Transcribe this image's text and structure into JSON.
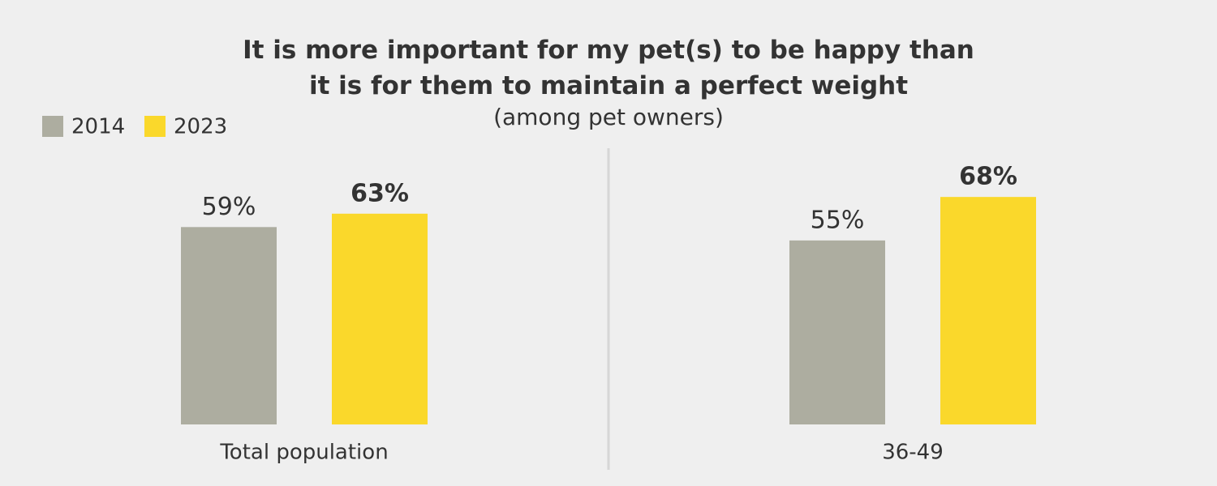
{
  "chart_data": {
    "type": "bar",
    "title": "It is more important for my pet(s) to be happy than it is for them to maintain a perfect weight",
    "subtitle": "(among pet owners)",
    "categories": [
      "Total population",
      "36-49"
    ],
    "series": [
      {
        "name": "2014",
        "color": "#adada0",
        "values": [
          59,
          55
        ],
        "value_labels": [
          "59%",
          "55%"
        ]
      },
      {
        "name": "2023",
        "color": "#fad82b",
        "values": [
          63,
          68
        ],
        "value_labels": [
          "63%",
          "68%"
        ]
      }
    ],
    "legend": "top-left"
  }
}
